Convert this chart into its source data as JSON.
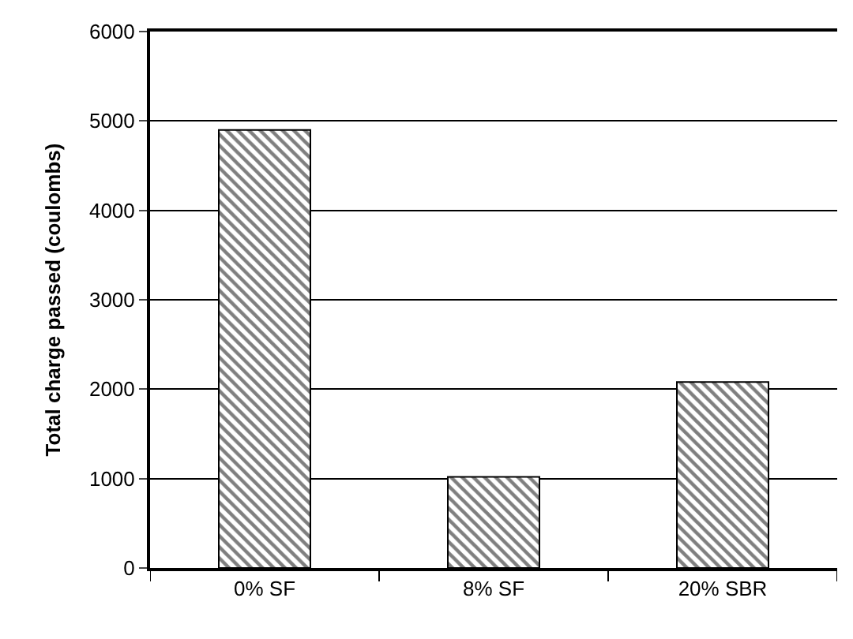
{
  "chart_data": {
    "type": "bar",
    "ylabel": "Total charge passed (coulombs)",
    "categories": [
      "0% SF",
      "8% SF",
      "20% SBR"
    ],
    "values": [
      4900,
      1020,
      2080
    ],
    "color": "#000000",
    "ylim": [
      0,
      6000
    ],
    "yticks": [
      0,
      1000,
      2000,
      3000,
      4000,
      5000,
      6000
    ],
    "grid": "y"
  }
}
